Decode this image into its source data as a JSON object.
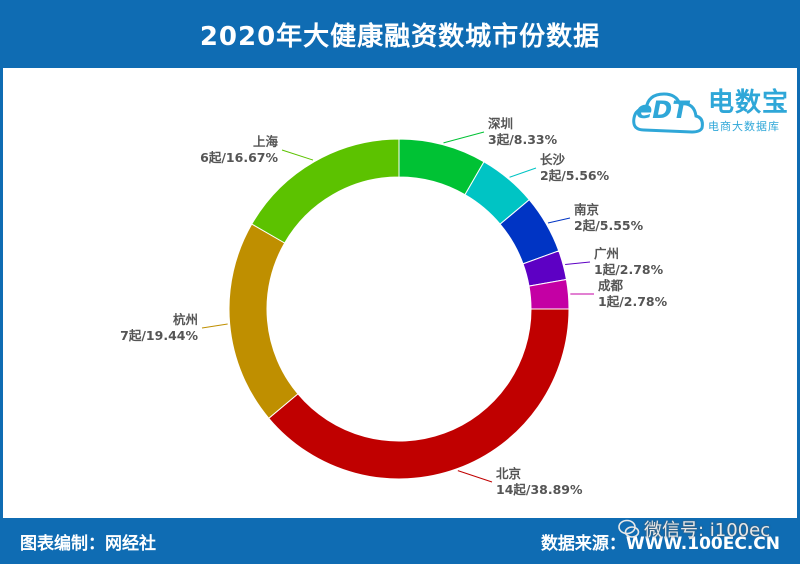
{
  "header": {
    "title": "2020年大健康融资数城市份数据"
  },
  "logo": {
    "name": "电数宝",
    "subtitle": "电商大数据库",
    "mark": "eDT"
  },
  "footer": {
    "left": "图表编制：网经社",
    "right": "数据来源：WWW.100EC.CN"
  },
  "watermark": {
    "text": "微信号: i100ec"
  },
  "chart_data": {
    "type": "pie",
    "style": "donut",
    "title": "2020年大健康融资数城市份数据",
    "slices": [
      {
        "name": "深圳",
        "count": 3,
        "unit": "起",
        "percent": 8.33,
        "label": "3起/8.33%",
        "color": "#00c234"
      },
      {
        "name": "长沙",
        "count": 2,
        "unit": "起",
        "percent": 5.56,
        "label": "2起/5.56%",
        "color": "#00c4c4"
      },
      {
        "name": "南京",
        "count": 2,
        "unit": "起",
        "percent": 5.55,
        "label": "2起/5.55%",
        "color": "#0034c4"
      },
      {
        "name": "广州",
        "count": 1,
        "unit": "起",
        "percent": 2.78,
        "label": "1起/2.78%",
        "color": "#5d00c4"
      },
      {
        "name": "成都",
        "count": 1,
        "unit": "起",
        "percent": 2.78,
        "label": "1起/2.78%",
        "color": "#c400a4"
      },
      {
        "name": "北京",
        "count": 14,
        "unit": "起",
        "percent": 38.89,
        "label": "14起/38.89%",
        "color": "#c00000"
      },
      {
        "name": "杭州",
        "count": 7,
        "unit": "起",
        "percent": 19.44,
        "label": "7起/19.44%",
        "color": "#bf8f00"
      },
      {
        "name": "上海",
        "count": 6,
        "unit": "起",
        "percent": 16.67,
        "label": "6起/16.67%",
        "color": "#5cc200"
      }
    ]
  }
}
